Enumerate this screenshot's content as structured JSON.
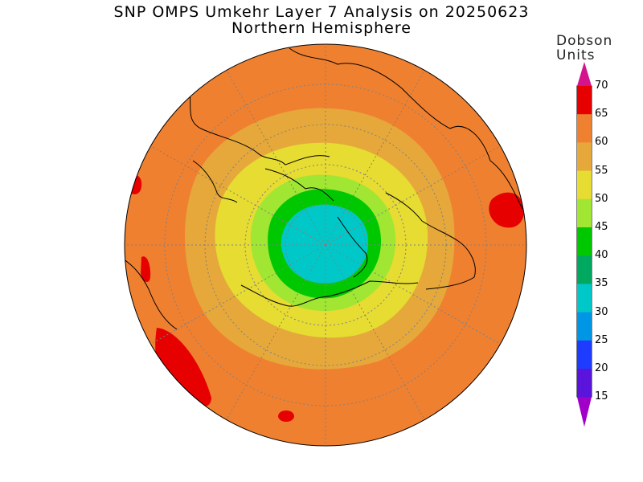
{
  "title": "SNP OMPS Umkehr Layer 7 Analysis on 20250623",
  "subtitle": "Northern Hemisphere",
  "colorbar": {
    "units_line1": "Dobson",
    "units_line2": "Units",
    "ticks": [
      "70",
      "65",
      "60",
      "55",
      "50",
      "45",
      "40",
      "35",
      "30",
      "25",
      "20",
      "15"
    ],
    "colors": [
      "#d4148c",
      "#e60000",
      "#ef8030",
      "#e6a83a",
      "#e6dc32",
      "#a0e632",
      "#00c800",
      "#00a860",
      "#00c8c8",
      "#0096e6",
      "#1e3cff",
      "#5a14dc",
      "#a000c8"
    ]
  },
  "map": {
    "projection": "polar stereographic",
    "hemisphere": "north",
    "contour_fill_colors": {
      "above_65": "#e60000",
      "60_65": "#ef8030",
      "55_60": "#e6a83a",
      "50_55": "#e6dc32",
      "45_50": "#a0e632",
      "40_45": "#00c800",
      "30_35": "#00c8c8"
    }
  }
}
